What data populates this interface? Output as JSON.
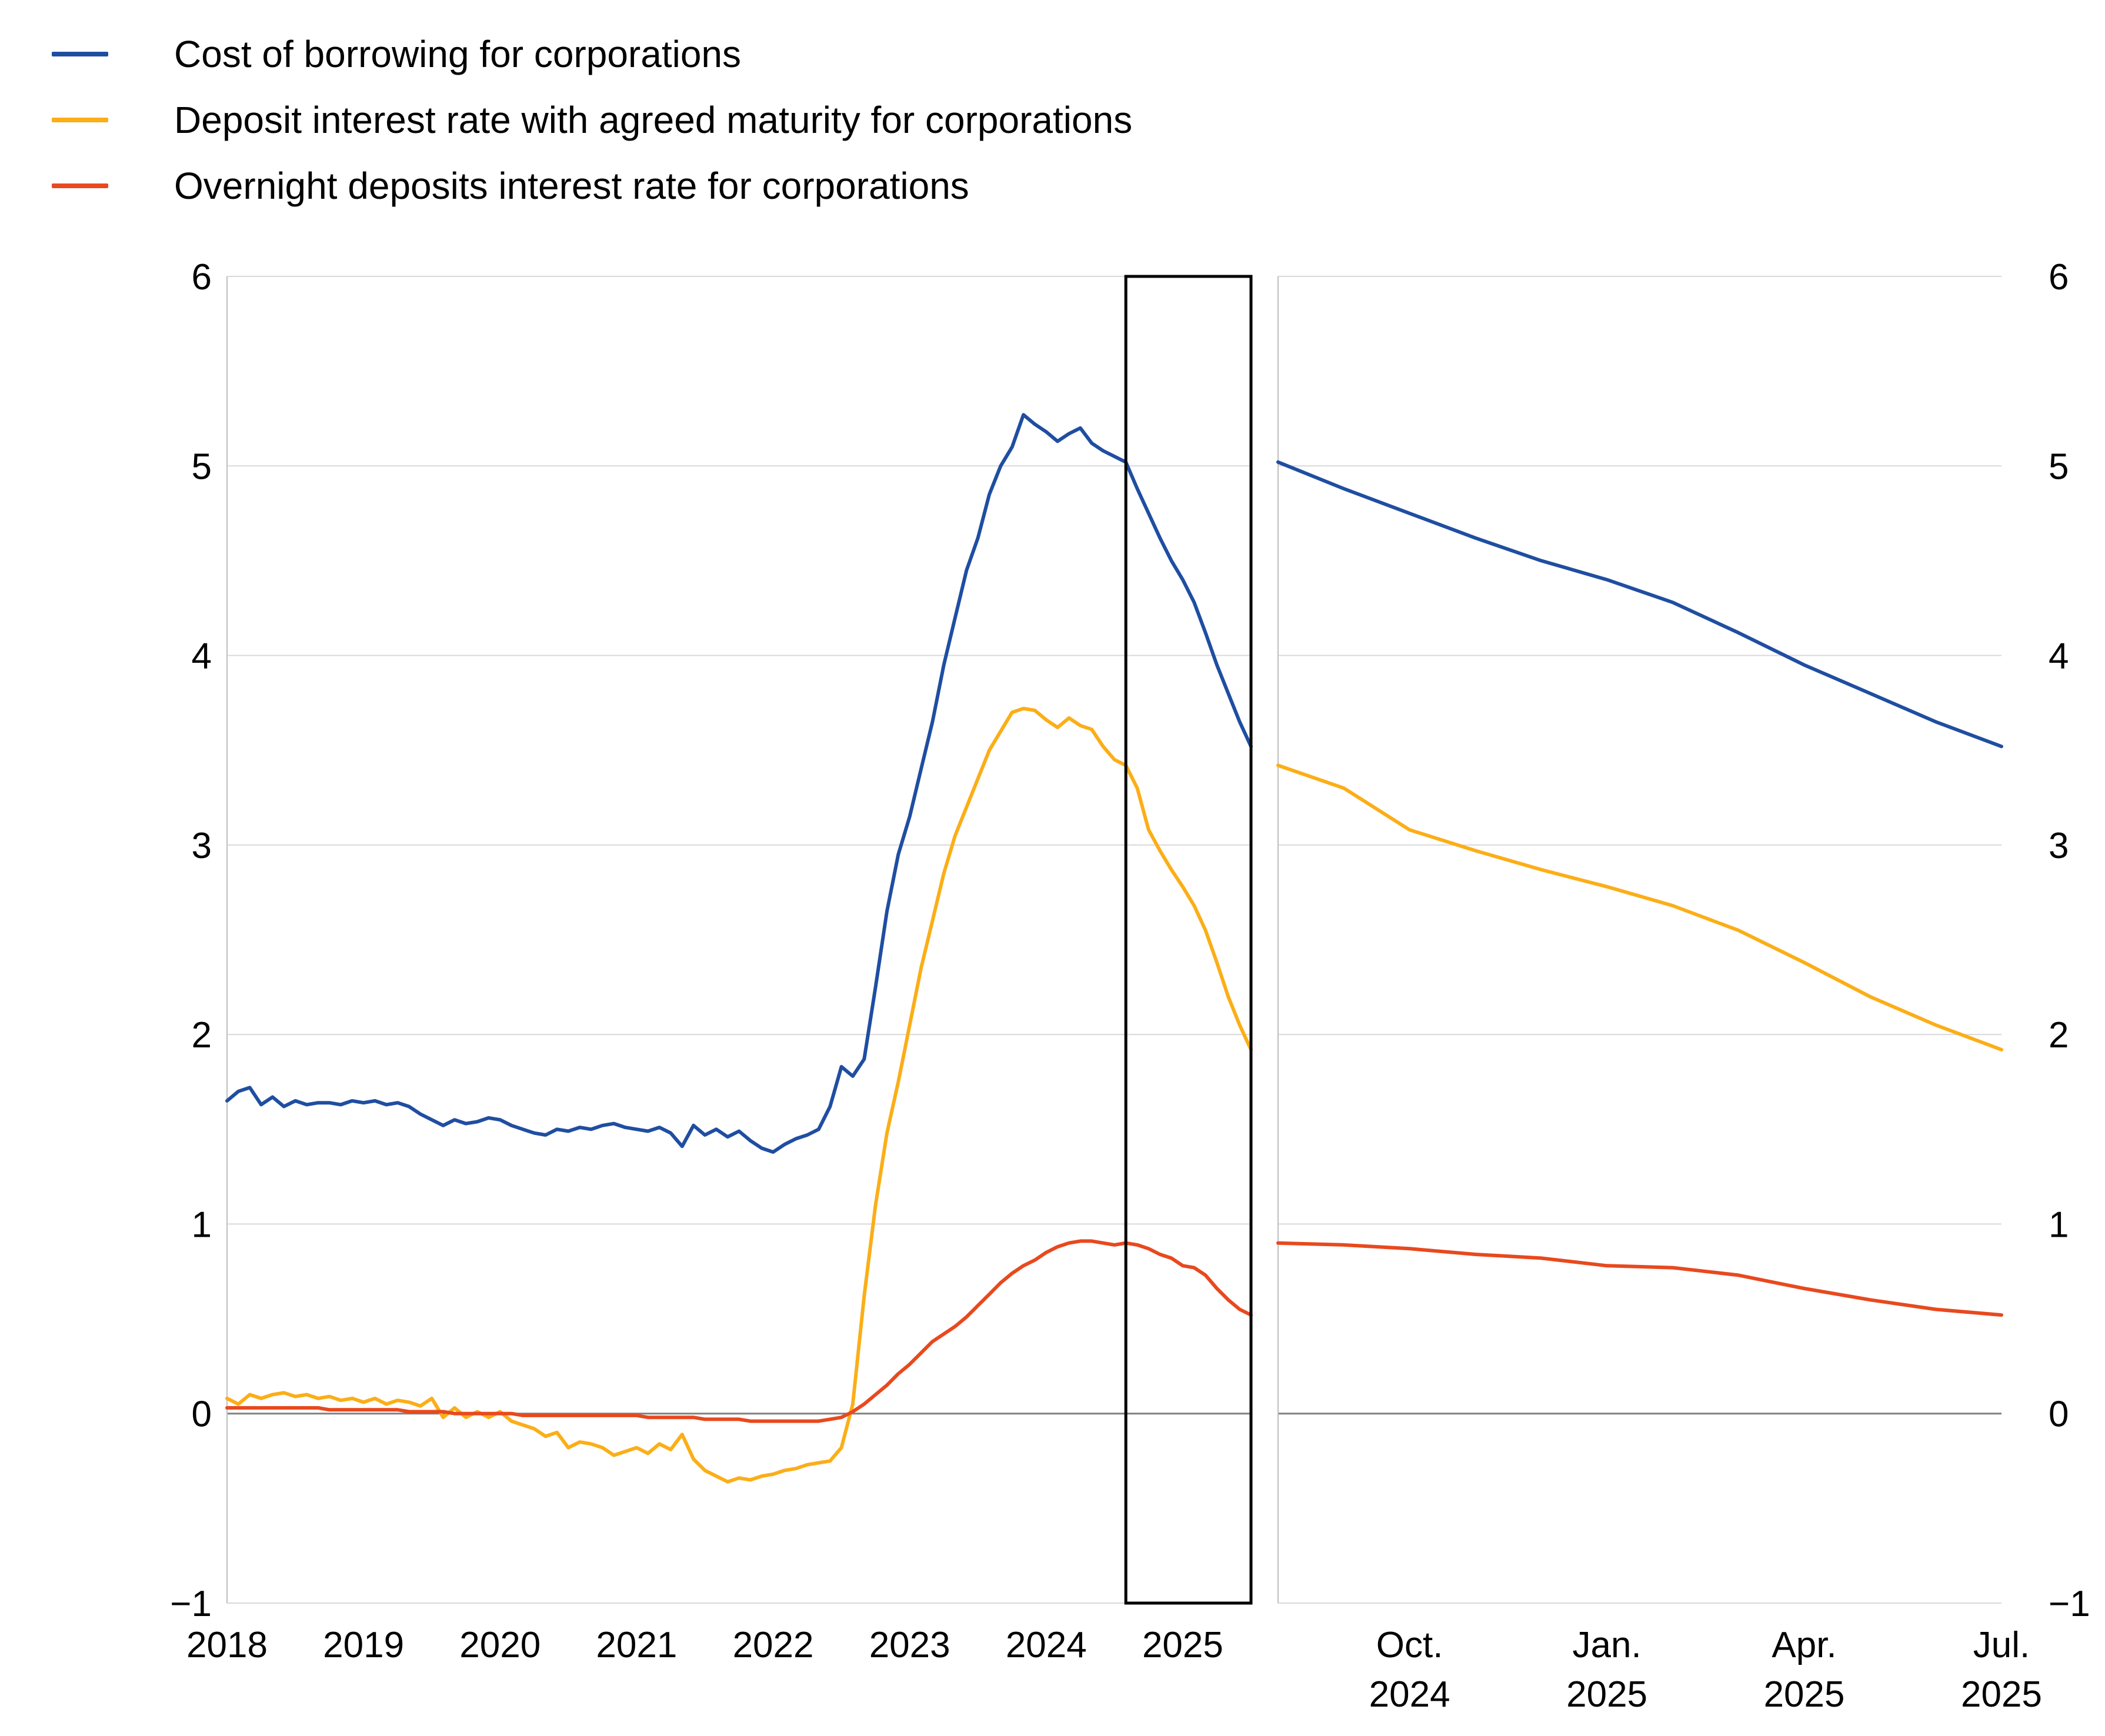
{
  "page": {
    "background": "#ffffff"
  },
  "chart_colors": {
    "grid": "#d9d9d9",
    "zero_line": "#808080",
    "axis": "#bfbfbf",
    "highlight_box": "#000000",
    "text": "#000000"
  },
  "legend": {
    "items": [
      {
        "id": "cost-of-borrowing",
        "label": "Cost of borrowing for corporations",
        "color": "#1f4ea1"
      },
      {
        "id": "deposit-agreed-maturity",
        "label": "Deposit interest rate with agreed maturity for corporations",
        "color": "#fbae17"
      },
      {
        "id": "overnight-deposits",
        "label": "Overnight deposits interest rate for corporations",
        "color": "#e8491e"
      }
    ]
  },
  "chart_data": [
    {
      "type": "line",
      "panel": "left",
      "x_unit": "month",
      "x_start": "2018-01",
      "x_end": "2025-07",
      "ylim": [
        -1,
        6
      ],
      "grid": true,
      "y_axis_side": "left",
      "y_ticks": [
        {
          "v": 6,
          "label": "6"
        },
        {
          "v": 5,
          "label": "5"
        },
        {
          "v": 4,
          "label": "4"
        },
        {
          "v": 3,
          "label": "3"
        },
        {
          "v": 2,
          "label": "2"
        },
        {
          "v": 1,
          "label": "1"
        },
        {
          "v": 0,
          "label": "0"
        },
        {
          "v": -1,
          "label": "−1"
        }
      ],
      "x_ticks": [
        {
          "label": "2018",
          "month_index": 0
        },
        {
          "label": "2019",
          "month_index": 12
        },
        {
          "label": "2020",
          "month_index": 24
        },
        {
          "label": "2021",
          "month_index": 36
        },
        {
          "label": "2022",
          "month_index": 48
        },
        {
          "label": "2023",
          "month_index": 60
        },
        {
          "label": "2024",
          "month_index": 72
        },
        {
          "label": "2025",
          "month_index": 84
        }
      ],
      "highlight_box": {
        "from": "2024-08",
        "to": "2025-07"
      },
      "series": [
        {
          "name": "Cost of borrowing for corporations",
          "color": "#1f4ea1",
          "values": [
            1.65,
            1.7,
            1.72,
            1.63,
            1.67,
            1.62,
            1.65,
            1.63,
            1.64,
            1.64,
            1.63,
            1.65,
            1.64,
            1.65,
            1.63,
            1.64,
            1.62,
            1.58,
            1.55,
            1.52,
            1.55,
            1.53,
            1.54,
            1.56,
            1.55,
            1.52,
            1.5,
            1.48,
            1.47,
            1.5,
            1.49,
            1.51,
            1.5,
            1.52,
            1.53,
            1.51,
            1.5,
            1.49,
            1.51,
            1.48,
            1.41,
            1.52,
            1.47,
            1.5,
            1.46,
            1.49,
            1.44,
            1.4,
            1.38,
            1.42,
            1.45,
            1.47,
            1.5,
            1.62,
            1.83,
            1.78,
            1.87,
            2.25,
            2.65,
            2.95,
            3.15,
            3.4,
            3.65,
            3.95,
            4.2,
            4.45,
            4.62,
            4.85,
            5.0,
            5.1,
            5.27,
            5.22,
            5.18,
            5.13,
            5.17,
            5.2,
            5.12,
            5.08,
            5.05,
            5.02,
            4.88,
            4.75,
            4.62,
            4.5,
            4.4,
            4.28,
            4.12,
            3.95,
            3.8,
            3.65,
            3.52
          ]
        },
        {
          "name": "Deposit interest rate with agreed maturity for corporations",
          "color": "#fbae17",
          "values": [
            0.08,
            0.05,
            0.1,
            0.08,
            0.1,
            0.11,
            0.09,
            0.1,
            0.08,
            0.09,
            0.07,
            0.08,
            0.06,
            0.08,
            0.05,
            0.07,
            0.06,
            0.04,
            0.08,
            -0.02,
            0.03,
            -0.02,
            0.01,
            -0.02,
            0.01,
            -0.04,
            -0.06,
            -0.08,
            -0.12,
            -0.1,
            -0.18,
            -0.15,
            -0.16,
            -0.18,
            -0.22,
            -0.2,
            -0.18,
            -0.21,
            -0.16,
            -0.19,
            -0.11,
            -0.24,
            -0.3,
            -0.33,
            -0.36,
            -0.34,
            -0.35,
            -0.33,
            -0.32,
            -0.3,
            -0.29,
            -0.27,
            -0.26,
            -0.25,
            -0.18,
            0.05,
            0.62,
            1.1,
            1.48,
            1.75,
            2.05,
            2.35,
            2.6,
            2.85,
            3.05,
            3.2,
            3.35,
            3.5,
            3.6,
            3.7,
            3.72,
            3.71,
            3.66,
            3.62,
            3.67,
            3.63,
            3.61,
            3.52,
            3.45,
            3.42,
            3.3,
            3.08,
            2.97,
            2.87,
            2.78,
            2.68,
            2.55,
            2.38,
            2.2,
            2.05,
            1.92
          ]
        },
        {
          "name": "Overnight deposits interest rate for corporations",
          "color": "#e8491e",
          "values": [
            0.03,
            0.03,
            0.03,
            0.03,
            0.03,
            0.03,
            0.03,
            0.03,
            0.03,
            0.02,
            0.02,
            0.02,
            0.02,
            0.02,
            0.02,
            0.02,
            0.01,
            0.01,
            0.01,
            0.01,
            0.0,
            0.0,
            0.0,
            0.0,
            0.0,
            0.0,
            -0.01,
            -0.01,
            -0.01,
            -0.01,
            -0.01,
            -0.01,
            -0.01,
            -0.01,
            -0.01,
            -0.01,
            -0.01,
            -0.02,
            -0.02,
            -0.02,
            -0.02,
            -0.02,
            -0.03,
            -0.03,
            -0.03,
            -0.03,
            -0.04,
            -0.04,
            -0.04,
            -0.04,
            -0.04,
            -0.04,
            -0.04,
            -0.03,
            -0.02,
            0.01,
            0.05,
            0.1,
            0.15,
            0.21,
            0.26,
            0.32,
            0.38,
            0.42,
            0.46,
            0.51,
            0.57,
            0.63,
            0.69,
            0.74,
            0.78,
            0.81,
            0.85,
            0.88,
            0.9,
            0.91,
            0.91,
            0.9,
            0.89,
            0.9,
            0.89,
            0.87,
            0.84,
            0.82,
            0.78,
            0.77,
            0.73,
            0.66,
            0.6,
            0.55,
            0.52
          ]
        }
      ]
    },
    {
      "type": "line",
      "panel": "right",
      "x_unit": "month",
      "x_start": "2024-08",
      "x_end": "2025-07",
      "ylim": [
        -1,
        6
      ],
      "grid": true,
      "y_axis_side": "right",
      "y_ticks": [
        {
          "v": 6,
          "label": "6"
        },
        {
          "v": 5,
          "label": "5"
        },
        {
          "v": 4,
          "label": "4"
        },
        {
          "v": 3,
          "label": "3"
        },
        {
          "v": 2,
          "label": "2"
        },
        {
          "v": 1,
          "label": "1"
        },
        {
          "v": 0,
          "label": "0"
        },
        {
          "v": -1,
          "label": "−1"
        }
      ],
      "x_ticks": [
        {
          "label": "Oct.",
          "label2": "2024",
          "month_index": 2
        },
        {
          "label": "Jan.",
          "label2": "2025",
          "month_index": 5
        },
        {
          "label": "Apr.",
          "label2": "2025",
          "month_index": 8
        },
        {
          "label": "Jul.",
          "label2": "2025",
          "month_index": 11
        }
      ],
      "series": [
        {
          "name": "Cost of borrowing for corporations",
          "color": "#1f4ea1",
          "values": [
            5.02,
            4.88,
            4.75,
            4.62,
            4.5,
            4.4,
            4.28,
            4.12,
            3.95,
            3.8,
            3.65,
            3.52
          ]
        },
        {
          "name": "Deposit interest rate with agreed maturity for corporations",
          "color": "#fbae17",
          "values": [
            3.42,
            3.3,
            3.08,
            2.97,
            2.87,
            2.78,
            2.68,
            2.55,
            2.38,
            2.2,
            2.05,
            1.92
          ]
        },
        {
          "name": "Overnight deposits interest rate for corporations",
          "color": "#e8491e",
          "values": [
            0.9,
            0.89,
            0.87,
            0.84,
            0.82,
            0.78,
            0.77,
            0.73,
            0.66,
            0.6,
            0.55,
            0.52
          ]
        }
      ]
    }
  ]
}
